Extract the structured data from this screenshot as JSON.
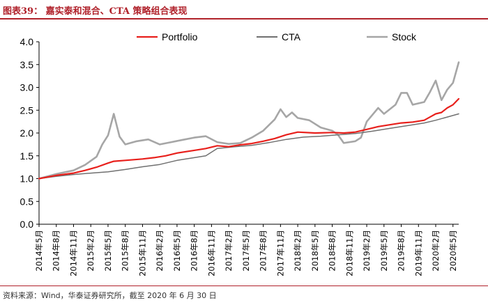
{
  "header": {
    "title": "图表39：  嘉实泰和混合、CTA 策略组合表现"
  },
  "footer": {
    "source": "资料来源：Wind，华泰证券研究所，截至 2020 年 6 月 30 日"
  },
  "chart_data": {
    "type": "line",
    "title": "",
    "xlabel": "",
    "ylabel": "",
    "x_range": [
      "2014-05",
      "2020-06"
    ],
    "ylim": [
      0.0,
      4.0
    ],
    "yticks": [
      0.0,
      0.5,
      1.0,
      1.5,
      2.0,
      2.5,
      3.0,
      3.5,
      4.0
    ],
    "ytick_labels": [
      "0.0",
      "0.5",
      "1.0",
      "1.5",
      "2.0",
      "2.5",
      "3.0",
      "3.5",
      "4.0"
    ],
    "xticks": [
      "2014-05",
      "2014-08",
      "2014-11",
      "2015-02",
      "2015-05",
      "2015-08",
      "2015-11",
      "2016-02",
      "2016-05",
      "2016-08",
      "2016-11",
      "2017-02",
      "2017-05",
      "2017-08",
      "2017-11",
      "2018-02",
      "2018-05",
      "2018-08",
      "2018-11",
      "2019-02",
      "2019-05",
      "2019-08",
      "2019-11",
      "2020-02",
      "2020-05"
    ],
    "xtick_labels": [
      "2014年5月",
      "2014年8月",
      "2014年11月",
      "2015年2月",
      "2015年5月",
      "2015年8月",
      "2015年11月",
      "2016年2月",
      "2016年5月",
      "2016年8月",
      "2016年11月",
      "2017年2月",
      "2017年5月",
      "2017年8月",
      "2017年11月",
      "2018年2月",
      "2018年5月",
      "2018年8月",
      "2018年11月",
      "2019年2月",
      "2019年5月",
      "2019年8月",
      "2019年11月",
      "2020年2月",
      "2020年5月"
    ],
    "grid": false,
    "legend_position": "top",
    "series": [
      {
        "name": "Portfolio",
        "color": "#e8201c",
        "width": 2.2,
        "points": [
          [
            "2014-05",
            1.0
          ],
          [
            "2014-08",
            1.07
          ],
          [
            "2014-11",
            1.12
          ],
          [
            "2015-01",
            1.18
          ],
          [
            "2015-03",
            1.25
          ],
          [
            "2015-05",
            1.34
          ],
          [
            "2015-06",
            1.38
          ],
          [
            "2015-08",
            1.4
          ],
          [
            "2015-11",
            1.43
          ],
          [
            "2016-01",
            1.46
          ],
          [
            "2016-03",
            1.5
          ],
          [
            "2016-05",
            1.56
          ],
          [
            "2016-08",
            1.62
          ],
          [
            "2016-10",
            1.66
          ],
          [
            "2016-12",
            1.72
          ],
          [
            "2017-02",
            1.7
          ],
          [
            "2017-04",
            1.74
          ],
          [
            "2017-06",
            1.77
          ],
          [
            "2017-08",
            1.82
          ],
          [
            "2017-10",
            1.88
          ],
          [
            "2017-12",
            1.96
          ],
          [
            "2018-02",
            2.02
          ],
          [
            "2018-05",
            2.0
          ],
          [
            "2018-08",
            2.01
          ],
          [
            "2018-10",
            2.0
          ],
          [
            "2018-12",
            2.02
          ],
          [
            "2019-02",
            2.08
          ],
          [
            "2019-04",
            2.14
          ],
          [
            "2019-06",
            2.18
          ],
          [
            "2019-08",
            2.22
          ],
          [
            "2019-10",
            2.24
          ],
          [
            "2019-12",
            2.28
          ],
          [
            "2020-01",
            2.35
          ],
          [
            "2020-02",
            2.42
          ],
          [
            "2020-03",
            2.45
          ],
          [
            "2020-04",
            2.55
          ],
          [
            "2020-05",
            2.62
          ],
          [
            "2020-06",
            2.75
          ]
        ]
      },
      {
        "name": "CTA",
        "color": "#707070",
        "width": 1.5,
        "points": [
          [
            "2014-05",
            1.0
          ],
          [
            "2014-08",
            1.05
          ],
          [
            "2014-11",
            1.09
          ],
          [
            "2015-02",
            1.12
          ],
          [
            "2015-05",
            1.15
          ],
          [
            "2015-08",
            1.2
          ],
          [
            "2015-11",
            1.26
          ],
          [
            "2016-02",
            1.31
          ],
          [
            "2016-05",
            1.4
          ],
          [
            "2016-08",
            1.46
          ],
          [
            "2016-10",
            1.5
          ],
          [
            "2016-12",
            1.66
          ],
          [
            "2017-03",
            1.7
          ],
          [
            "2017-06",
            1.73
          ],
          [
            "2017-09",
            1.79
          ],
          [
            "2017-12",
            1.86
          ],
          [
            "2018-03",
            1.91
          ],
          [
            "2018-06",
            1.93
          ],
          [
            "2018-09",
            1.96
          ],
          [
            "2018-12",
            1.99
          ],
          [
            "2019-03",
            2.04
          ],
          [
            "2019-06",
            2.1
          ],
          [
            "2019-09",
            2.16
          ],
          [
            "2019-12",
            2.22
          ],
          [
            "2020-02",
            2.28
          ],
          [
            "2020-04",
            2.35
          ],
          [
            "2020-06",
            2.42
          ]
        ]
      },
      {
        "name": "Stock",
        "color": "#a6a6a6",
        "width": 2.6,
        "points": [
          [
            "2014-05",
            1.0
          ],
          [
            "2014-08",
            1.1
          ],
          [
            "2014-11",
            1.18
          ],
          [
            "2015-01",
            1.3
          ],
          [
            "2015-03",
            1.48
          ],
          [
            "2015-04",
            1.75
          ],
          [
            "2015-05",
            1.95
          ],
          [
            "2015-06",
            2.42
          ],
          [
            "2015-07",
            1.92
          ],
          [
            "2015-08",
            1.75
          ],
          [
            "2015-10",
            1.82
          ],
          [
            "2015-12",
            1.86
          ],
          [
            "2016-02",
            1.75
          ],
          [
            "2016-04",
            1.8
          ],
          [
            "2016-06",
            1.85
          ],
          [
            "2016-08",
            1.9
          ],
          [
            "2016-10",
            1.93
          ],
          [
            "2016-12",
            1.8
          ],
          [
            "2017-02",
            1.76
          ],
          [
            "2017-04",
            1.78
          ],
          [
            "2017-06",
            1.9
          ],
          [
            "2017-08",
            2.05
          ],
          [
            "2017-10",
            2.3
          ],
          [
            "2017-11",
            2.52
          ],
          [
            "2017-12",
            2.35
          ],
          [
            "2018-01",
            2.45
          ],
          [
            "2018-02",
            2.33
          ],
          [
            "2018-04",
            2.28
          ],
          [
            "2018-06",
            2.12
          ],
          [
            "2018-08",
            2.05
          ],
          [
            "2018-09",
            1.96
          ],
          [
            "2018-10",
            1.78
          ],
          [
            "2018-12",
            1.82
          ],
          [
            "2019-01",
            1.9
          ],
          [
            "2019-02",
            2.25
          ],
          [
            "2019-03",
            2.4
          ],
          [
            "2019-04",
            2.55
          ],
          [
            "2019-05",
            2.42
          ],
          [
            "2019-07",
            2.62
          ],
          [
            "2019-08",
            2.88
          ],
          [
            "2019-09",
            2.88
          ],
          [
            "2019-10",
            2.62
          ],
          [
            "2019-12",
            2.68
          ],
          [
            "2020-01",
            2.9
          ],
          [
            "2020-02",
            3.15
          ],
          [
            "2020-03",
            2.72
          ],
          [
            "2020-04",
            2.95
          ],
          [
            "2020-05",
            3.1
          ],
          [
            "2020-06",
            3.55
          ]
        ]
      }
    ]
  }
}
